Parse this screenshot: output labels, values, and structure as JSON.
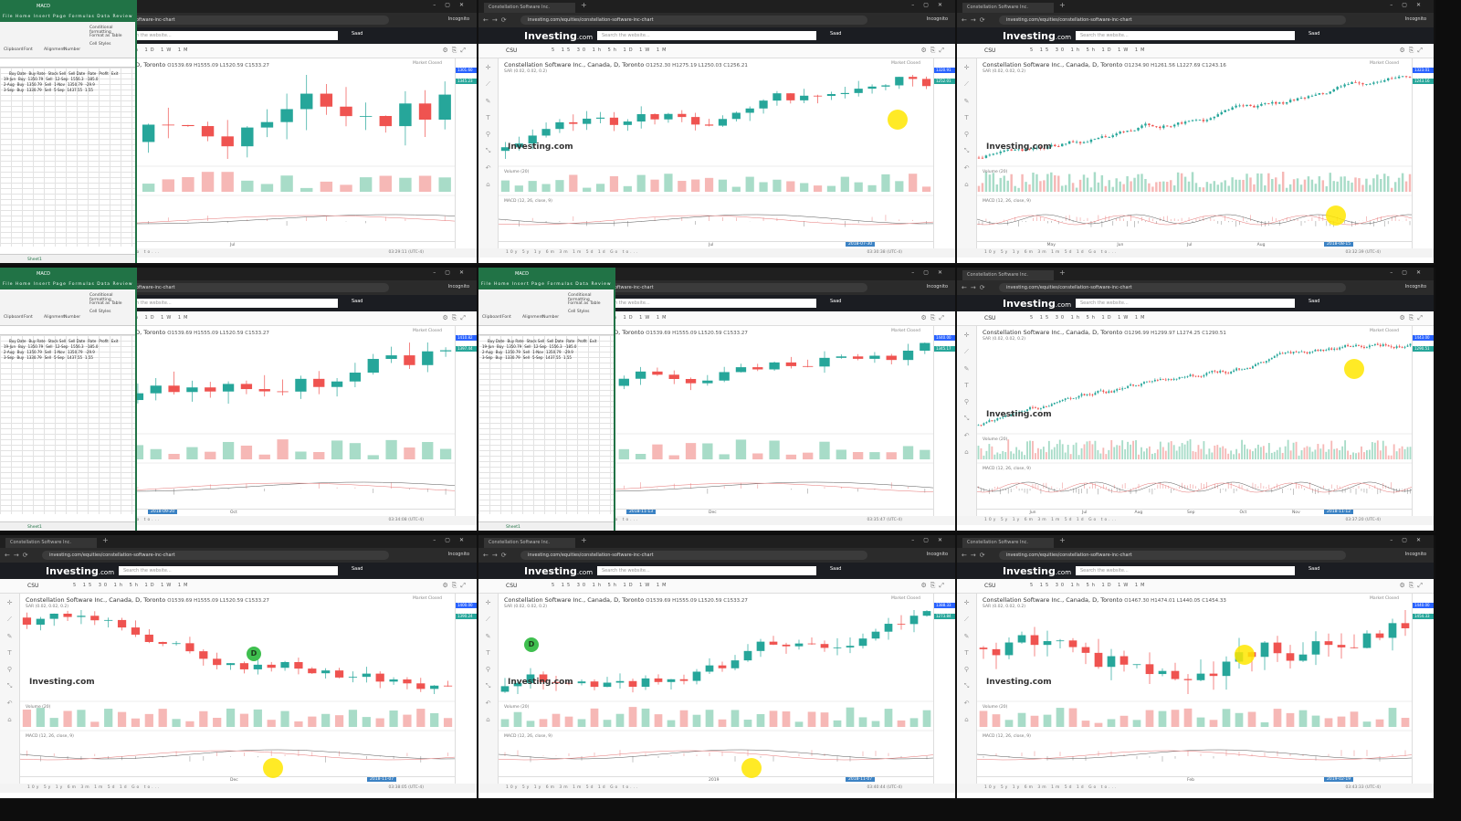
{
  "browser": {
    "tab_title": "Constellation Software Inc.",
    "url_full": "investing.com/equities/constellation-software-inc-chart",
    "url_short": "com/equities/constellation-software-inc-chart",
    "incognito": "Incognito",
    "search_placeholder": "Search the website...",
    "user": "Saad"
  },
  "site": {
    "logo": "Investing",
    "logo_suffix": ".com"
  },
  "chart_common": {
    "symbol": "CSU",
    "title": "Constellation Software Inc., Canada, D, Toronto",
    "volume_label": "Volume (20)",
    "macd_label": "MACD (12, 26, close, 9)",
    "sar_label": "SAR (0.02, 0.02, 0.2)",
    "market_closed": "Market Closed",
    "watermark": "Investing",
    "watermark_suffix": ".com",
    "timeframes": "5 15 30 1h 5h 1D 1W 1M",
    "bottom_ranges": "10y 5y 1y 6m 3m 1m 5d 1d Go to...",
    "log_auto": "% log auto"
  },
  "excel": {
    "title": "MACD",
    "menu": "File Home Insert Page Formulas Data Review View",
    "ribbon": [
      "Clipboard",
      "Font",
      "Alignment",
      "Number",
      "Conditional formatting",
      "Format as Table",
      "Cell Styles"
    ],
    "sheet_tab": "Sheet1",
    "headers": [
      "Buy Date",
      "Buy Rate",
      "Stock Sell",
      "Sell Date",
      "Rate",
      "Profit",
      "Exit"
    ],
    "rows": [
      [
        "19-Jun",
        "Buy",
        "1350.79",
        "Sell",
        "12-Sep",
        "1556.3",
        "-185.0"
      ],
      [
        "2-Aug",
        "Buy",
        "1350.79",
        "Sell",
        "1-Nov",
        "1350.79",
        "-29.9"
      ],
      [
        "3-Sep",
        "Buy",
        "1330.79",
        "Sell",
        "5-Sep",
        "1437.55",
        "1.55"
      ]
    ]
  },
  "panels": [
    {
      "ohlc": "O1539.69 H1555.09 L1520.59 C1533.27",
      "x_labels": [
        "Jul"
      ],
      "clock": "03:29:11 (UTC-4)",
      "price_tags": [
        "1301.60",
        "1345.23"
      ],
      "has_excel": true
    },
    {
      "ohlc": "O1252.30 H1275.19 L1250.03 C1256.21",
      "x_labels": [
        "Jul"
      ],
      "x_tag": "2018-07-30",
      "clock": "03:30:38 (UTC-4)",
      "price_tags": [
        "1320.91",
        "1252.01"
      ],
      "has_excel": false
    },
    {
      "ohlc": "O1234.90 H1261.56 L1227.69 C1243.16",
      "x_labels": [
        "May",
        "Jun",
        "Jul",
        "Aug",
        "Sep"
      ],
      "x_tag": "2018-08-15",
      "clock": "03:32:39 (UTC-4)",
      "price_tags": [
        "1323.01",
        "1243.16"
      ],
      "has_excel": false
    },
    {
      "ohlc": "O1539.69 H1555.09 L1520.59 C1533.27",
      "x_labels": [
        "Oct"
      ],
      "x_tag": "2018-09-20",
      "clock": "03:34:08 (UTC-4)",
      "price_tags": [
        "1410.82",
        "1397.44"
      ],
      "has_excel": true
    },
    {
      "ohlc": "O1539.69 H1555.09 L1520.59 C1533.27",
      "x_labels": [
        "Dec"
      ],
      "x_tag": "2018-11-13",
      "clock": "03:35:47 (UTC-4)",
      "price_tags": [
        "1440.00",
        "1345.17"
      ],
      "has_excel": true
    },
    {
      "ohlc": "O1296.99 H1299.97 L1274.25 C1290.51",
      "x_labels": [
        "Jun",
        "Jul",
        "Aug",
        "Sep",
        "Oct",
        "Nov",
        "Dec"
      ],
      "x_tag": "2018-11-12",
      "clock": "03:37:20 (UTC-4)",
      "price_tags": [
        "1443.00",
        "1290.51"
      ],
      "has_excel": false
    },
    {
      "ohlc": "O1539.69 H1555.09 L1520.59 C1533.27",
      "x_labels": [
        "Dec"
      ],
      "x_tag": "2018-11-07",
      "clock": "03:38:05 (UTC-4)",
      "price_tags": [
        "1400.00",
        "1390.24"
      ],
      "has_excel": false
    },
    {
      "ohlc": "O1539.69 H1555.09 L1520.59 C1533.27",
      "x_labels": [
        "2019"
      ],
      "x_tag": "2018-11-07",
      "clock": "03:40:44 (UTC-4)",
      "price_tags": [
        "1388.33",
        "1273.84"
      ],
      "has_excel": false
    },
    {
      "ohlc": "O1467.30 H1474.01 L1440.05 C1454.33",
      "x_labels": [
        "Feb"
      ],
      "x_tag": "2019-02-19",
      "clock": "03:43:33 (UTC-4)",
      "price_tags": [
        "1440.00",
        "1454.33"
      ],
      "has_excel": false
    }
  ],
  "colors": {
    "up": "#26a69a",
    "down": "#ef5350",
    "sar": "#2196f3",
    "highlight": "#ffe600"
  }
}
